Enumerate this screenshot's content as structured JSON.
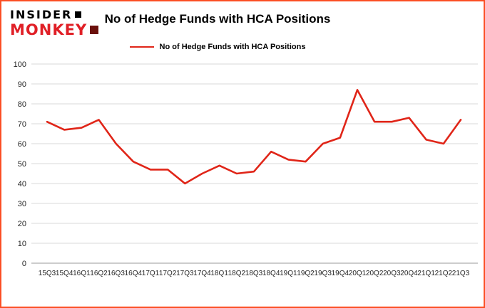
{
  "logo": {
    "line1": "INSIDER",
    "line2": "MONKEY"
  },
  "chart_data": {
    "type": "line",
    "title": "No of Hedge Funds with HCA Positions",
    "legend": "No of Hedge Funds with HCA Positions",
    "categories": [
      "15Q3",
      "15Q4",
      "16Q1",
      "16Q2",
      "16Q3",
      "16Q4",
      "17Q1",
      "17Q2",
      "17Q3",
      "17Q4",
      "18Q1",
      "18Q2",
      "18Q3",
      "18Q4",
      "19Q1",
      "19Q2",
      "19Q3",
      "19Q4",
      "20Q1",
      "20Q2",
      "20Q3",
      "20Q4",
      "21Q1",
      "21Q2",
      "21Q3"
    ],
    "values": [
      71,
      67,
      68,
      72,
      60,
      51,
      47,
      47,
      40,
      45,
      49,
      45,
      46,
      56,
      52,
      51,
      60,
      63,
      87,
      71,
      71,
      73,
      62,
      60,
      72
    ],
    "xlabel": "",
    "ylabel": "",
    "ylim": [
      0,
      100
    ],
    "ytick_interval": 10,
    "grid": true,
    "legend_position": "top-center",
    "line_color": "#e02518",
    "border_color": "#fb4f24",
    "gridline_color": "#d9d9d9",
    "axis_line_color": "#9a9a9a"
  }
}
